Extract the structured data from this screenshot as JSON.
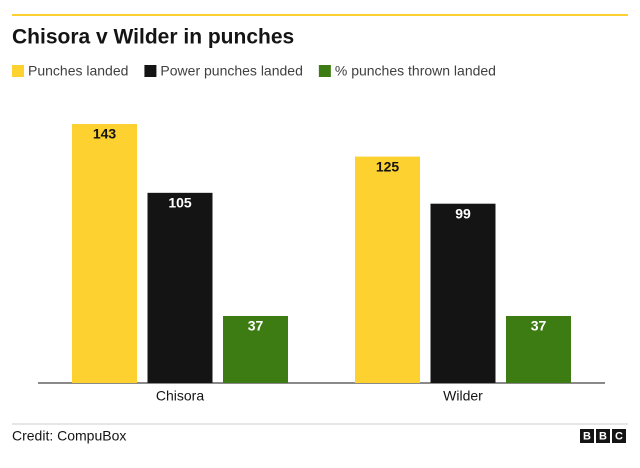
{
  "chart_data": {
    "type": "grouped-bar",
    "title": "Chisora v Wilder in punches",
    "categories": [
      "Chisora",
      "Wilder"
    ],
    "series": [
      {
        "name": "Punches landed",
        "color": "#fdd12f",
        "values": [
          143,
          125
        ]
      },
      {
        "name": "Power punches landed",
        "color": "#141414",
        "values": [
          105,
          99
        ]
      },
      {
        "name": "% punches thrown landed",
        "color": "#3d7c12",
        "values": [
          37,
          37
        ]
      }
    ]
  },
  "credit": "Credit: CompuBox",
  "logo": [
    "B",
    "B",
    "C"
  ]
}
